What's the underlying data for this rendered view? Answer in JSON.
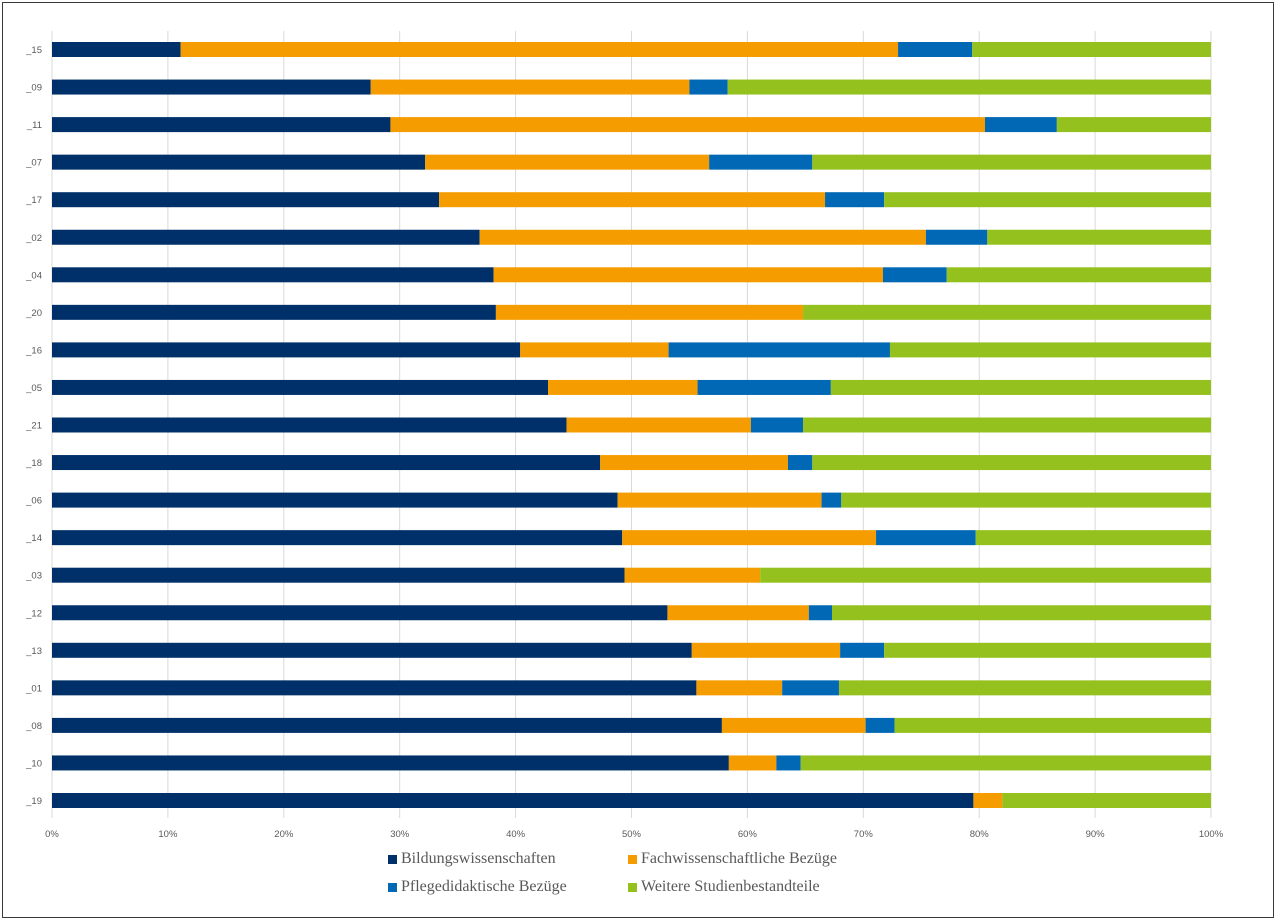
{
  "chart_data": {
    "type": "bar",
    "orientation": "horizontal",
    "stacked": "percent",
    "title": "",
    "xlabel": "",
    "ylabel": "",
    "xlim": [
      0,
      100
    ],
    "grid": true,
    "legend_position": "bottom",
    "x_ticks": [
      "0%",
      "10%",
      "20%",
      "30%",
      "40%",
      "50%",
      "60%",
      "70%",
      "80%",
      "90%",
      "100%"
    ],
    "categories": [
      "_15",
      "_09",
      "_11",
      "_07",
      "_17",
      "_02",
      "_04",
      "_20",
      "_16",
      "_05",
      "_21",
      "_18",
      "_06",
      "_14",
      "_03",
      "_12",
      "_13",
      "_01",
      "_08",
      "_10",
      "_19"
    ],
    "series": [
      {
        "name": "Bildungswissenschaften",
        "color": "#00306A",
        "values": [
          11.1,
          27.5,
          29.2,
          32.2,
          33.4,
          36.9,
          38.1,
          38.3,
          40.4,
          42.8,
          44.4,
          47.3,
          48.8,
          49.2,
          49.4,
          53.1,
          55.2,
          55.6,
          57.8,
          58.4,
          79.5
        ]
      },
      {
        "name": "Fachwissenschaftliche Bezüge",
        "color": "#F59D00",
        "values": [
          61.9,
          27.5,
          51.3,
          24.5,
          33.3,
          38.5,
          33.6,
          26.5,
          12.8,
          12.9,
          15.9,
          16.2,
          17.6,
          21.9,
          11.7,
          12.2,
          12.8,
          7.4,
          12.4,
          4.1,
          2.5
        ]
      },
      {
        "name": "Pflegedidaktische Bezüge",
        "color": "#0068B4",
        "values": [
          6.4,
          3.3,
          6.2,
          8.9,
          5.1,
          5.3,
          5.5,
          0,
          19.1,
          11.5,
          4.5,
          2.1,
          1.7,
          8.6,
          0,
          2.0,
          3.8,
          4.9,
          2.5,
          2.1,
          0
        ]
      },
      {
        "name": "Weitere Studienbestandteile",
        "color": "#95C11F",
        "values": [
          20.6,
          41.7,
          13.3,
          34.4,
          28.2,
          19.3,
          22.8,
          35.2,
          27.7,
          32.8,
          35.2,
          34.4,
          31.9,
          20.3,
          38.9,
          32.7,
          28.2,
          32.1,
          27.3,
          35.4,
          18.0
        ]
      }
    ]
  },
  "legend": [
    {
      "label": "Bildungswissenschaften",
      "color": "#00306A"
    },
    {
      "label": "Fachwissenschaftliche Bezüge",
      "color": "#F59D00"
    },
    {
      "label": "Pflegedidaktische Bezüge",
      "color": "#0068B4"
    },
    {
      "label": "Weitere Studienbestandteile",
      "color": "#95C11F"
    }
  ]
}
